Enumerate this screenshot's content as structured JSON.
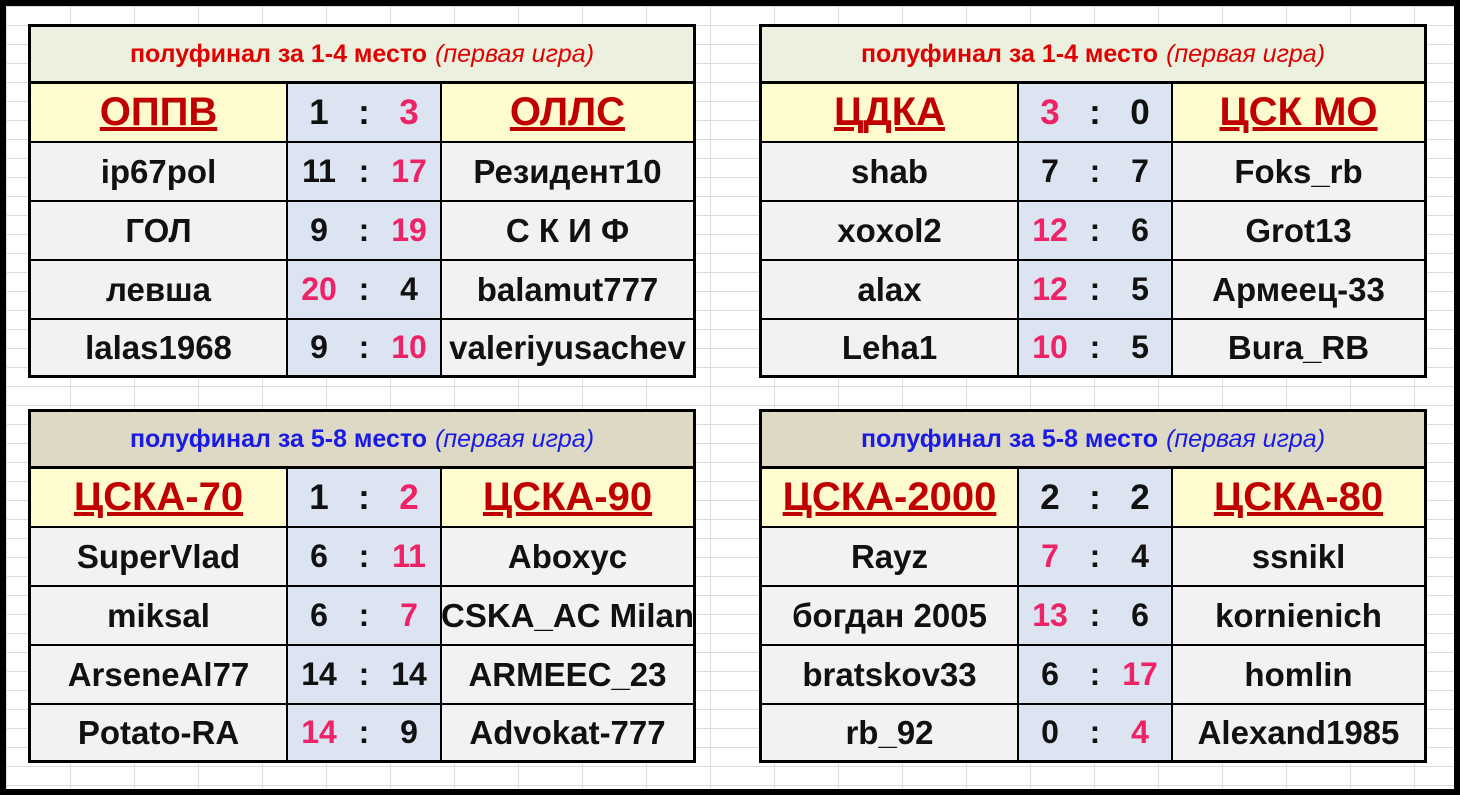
{
  "colors": {
    "title_red": "#e00000",
    "title_blue": "#1a1ae6",
    "win": "#ee2266",
    "normal": "#111111",
    "team": "#c00000"
  },
  "blocks": [
    {
      "title": "полуфинал за 1-4 место",
      "subtitle": "(первая игра)",
      "title_color": "#e00000",
      "title_bg": "#ebf1de",
      "team_left": "ОППВ",
      "team_right": "ОЛЛС",
      "score_left": "1",
      "score_right": "3",
      "winner": "right",
      "rows": [
        {
          "left": "ip67pol",
          "sl": "11",
          "sr": "17",
          "right": "Резидент10",
          "winner": "right"
        },
        {
          "left": "ГОЛ",
          "sl": "9",
          "sr": "19",
          "right": "С К И Ф",
          "winner": "right"
        },
        {
          "left": "левша",
          "sl": "20",
          "sr": "4",
          "right": "balamut777",
          "winner": "left"
        },
        {
          "left": "lalas1968",
          "sl": "9",
          "sr": "10",
          "right": "valeriyusachev",
          "winner": "right"
        }
      ]
    },
    {
      "title": "полуфинал за 1-4 место",
      "subtitle": "(первая игра)",
      "title_color": "#e00000",
      "title_bg": "#ebf1de",
      "team_left": "ЦДКА",
      "team_right": "ЦСК МО",
      "score_left": "3",
      "score_right": "0",
      "winner": "left",
      "rows": [
        {
          "left": "shab",
          "sl": "7",
          "sr": "7",
          "right": "Foks_rb",
          "winner": "none"
        },
        {
          "left": "xoxol2",
          "sl": "12",
          "sr": "6",
          "right": "Grot13",
          "winner": "left"
        },
        {
          "left": "alax",
          "sl": "12",
          "sr": "5",
          "right": "Армеец-33",
          "winner": "left"
        },
        {
          "left": "Leha1",
          "sl": "10",
          "sr": "5",
          "right": "Bura_RB",
          "winner": "left"
        }
      ]
    },
    {
      "title": "полуфинал за 5-8 место",
      "subtitle": "(первая игра)",
      "title_color": "#1a1ae6",
      "title_bg": "#ddd9c4",
      "team_left": "ЦСКА-70",
      "team_right": "ЦСКА-90",
      "score_left": "1",
      "score_right": "2",
      "winner": "right",
      "rows": [
        {
          "left": "SuperVlad",
          "sl": "6",
          "sr": "11",
          "right": "Aboxyc",
          "winner": "right"
        },
        {
          "left": "miksal",
          "sl": "6",
          "sr": "7",
          "right": "CSKA_AC Milan",
          "winner": "right"
        },
        {
          "left": "ArseneAl77",
          "sl": "14",
          "sr": "14",
          "right": "ARMEEC_23",
          "winner": "none"
        },
        {
          "left": "Potato-RA",
          "sl": "14",
          "sr": "9",
          "right": "Advokat-777",
          "winner": "left"
        }
      ]
    },
    {
      "title": "полуфинал за 5-8 место",
      "subtitle": "(первая игра)",
      "title_color": "#1a1ae6",
      "title_bg": "#ddd9c4",
      "team_left": "ЦСКА-2000",
      "team_right": "ЦСКА-80",
      "score_left": "2",
      "score_right": "2",
      "winner": "none",
      "rows": [
        {
          "left": "Rayz",
          "sl": "7",
          "sr": "4",
          "right": "ssnikl",
          "winner": "left"
        },
        {
          "left": "богдан 2005",
          "sl": "13",
          "sr": "6",
          "right": "kornienich",
          "winner": "left"
        },
        {
          "left": "bratskov33",
          "sl": "6",
          "sr": "17",
          "right": "homlin",
          "winner": "right"
        },
        {
          "left": "rb_92",
          "sl": "0",
          "sr": "4",
          "right": "Alexand1985",
          "winner": "right"
        }
      ]
    }
  ]
}
